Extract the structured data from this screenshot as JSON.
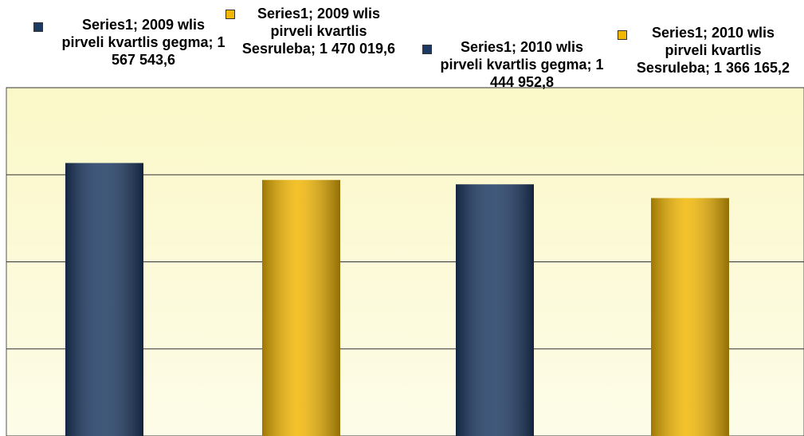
{
  "chart_data": {
    "type": "bar",
    "values": [
      1567543.6,
      1470019.6,
      1444952.8,
      1366165.2
    ],
    "value_labels": [
      "Series1; 2009 wlis pirveli kvartlis gegma; 1 567 543,6",
      "Series1; 2009 wlis pirveli kvartlis Sesruleba; 1 470 019,6",
      "Series1; 2010 wlis pirveli kvartlis gegma; 1 444 952,8",
      "Series1; 2010 wlis pirveli kvartlis Sesruleba; 1 366 165,2"
    ],
    "colors": [
      "#1d3a63",
      "#f2b705",
      "#1d3a63",
      "#f2b705"
    ],
    "ylim": [
      0,
      2000000
    ],
    "yticks": [
      0,
      500000,
      1000000,
      1500000,
      2000000
    ],
    "grid": true
  }
}
